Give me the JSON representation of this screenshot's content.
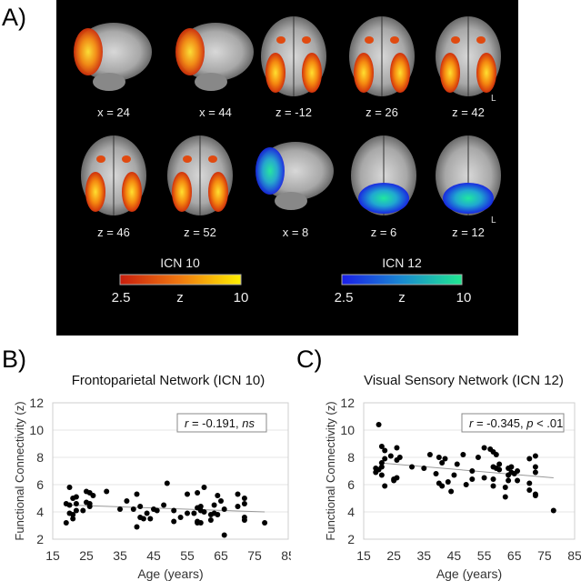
{
  "panel_a": {
    "label": "A)",
    "row1": [
      "x = 24",
      "x = 44",
      "z = -12",
      "z = 26",
      "z = 42"
    ],
    "row2": [
      "z = 46",
      "z = 52",
      "x = 8",
      "z = 6",
      "z = 12"
    ],
    "side_marker": "L",
    "colorbars": [
      {
        "title": "ICN 10",
        "min": "2.5",
        "mid": "z",
        "max": "10",
        "colors": [
          "#c81e0e",
          "#f07a10",
          "#fff000"
        ]
      },
      {
        "title": "ICN 12",
        "min": "2.5",
        "mid": "z",
        "max": "10",
        "colors": [
          "#1a1ee8",
          "#1a8ad0",
          "#20e890"
        ]
      }
    ]
  },
  "chart_data": [
    {
      "panel_label": "B)",
      "type": "scatter",
      "title": "Frontoparietal Network (ICN 10)",
      "xlabel": "Age (years)",
      "ylabel": "Functional Connectivity (z)",
      "xlim": [
        15,
        85
      ],
      "ylim": [
        2,
        12
      ],
      "xticks": [
        "15",
        "25",
        "35",
        "45",
        "55",
        "65",
        "75",
        "85"
      ],
      "yticks": [
        "2",
        "4",
        "6",
        "8",
        "10",
        "12"
      ],
      "grid": true,
      "annotation": {
        "stat": "r",
        "value": " = -0.191, ",
        "sig": "ns"
      },
      "trendline": [
        [
          20,
          4.5
        ],
        [
          78,
          4.0
        ]
      ],
      "points": [
        [
          19,
          4.6
        ],
        [
          19,
          3.2
        ],
        [
          20,
          5.8
        ],
        [
          20,
          4.5
        ],
        [
          20,
          3.9
        ],
        [
          21,
          3.8
        ],
        [
          21,
          3.5
        ],
        [
          21,
          5.0
        ],
        [
          22,
          5.1
        ],
        [
          22,
          4.6
        ],
        [
          22,
          4.1
        ],
        [
          24,
          4.1
        ],
        [
          25,
          5.5
        ],
        [
          25,
          4.7
        ],
        [
          26,
          5.4
        ],
        [
          26,
          4.6
        ],
        [
          26,
          4.4
        ],
        [
          27,
          5.2
        ],
        [
          31,
          5.5
        ],
        [
          35,
          4.2
        ],
        [
          37,
          4.8
        ],
        [
          39,
          4.2
        ],
        [
          40,
          5.3
        ],
        [
          40,
          2.9
        ],
        [
          41,
          4.4
        ],
        [
          41,
          3.6
        ],
        [
          42,
          3.5
        ],
        [
          43,
          3.9
        ],
        [
          44,
          3.5
        ],
        [
          45,
          4.2
        ],
        [
          46,
          4.1
        ],
        [
          48,
          4.5
        ],
        [
          49,
          6.1
        ],
        [
          51,
          4.1
        ],
        [
          51,
          3.3
        ],
        [
          53,
          3.6
        ],
        [
          55,
          5.3
        ],
        [
          55,
          3.9
        ],
        [
          57,
          3.9
        ],
        [
          58,
          5.4
        ],
        [
          58,
          4.3
        ],
        [
          58,
          3.3
        ],
        [
          58,
          3.2
        ],
        [
          59,
          4.4
        ],
        [
          59,
          4.1
        ],
        [
          59,
          3.2
        ],
        [
          60,
          5.8
        ],
        [
          60,
          4.0
        ],
        [
          62,
          3.8
        ],
        [
          62,
          3.4
        ],
        [
          63,
          4.5
        ],
        [
          63,
          3.9
        ],
        [
          64,
          5.2
        ],
        [
          64,
          3.8
        ],
        [
          65,
          4.8
        ],
        [
          66,
          4.2
        ],
        [
          66,
          2.3
        ],
        [
          70,
          5.3
        ],
        [
          70,
          4.4
        ],
        [
          72,
          5.0
        ],
        [
          72,
          4.6
        ],
        [
          72,
          3.6
        ],
        [
          72,
          3.4
        ],
        [
          78,
          3.2
        ]
      ]
    },
    {
      "panel_label": "C)",
      "type": "scatter",
      "title": "Visual Sensory Network (ICN 12)",
      "xlabel": "Age (years)",
      "ylabel": "Functional Connectivity (z)",
      "xlim": [
        15,
        85
      ],
      "ylim": [
        2,
        12
      ],
      "xticks": [
        "15",
        "25",
        "35",
        "45",
        "55",
        "65",
        "75",
        "85"
      ],
      "yticks": [
        "2",
        "4",
        "6",
        "8",
        "10",
        "12"
      ],
      "grid": true,
      "annotation": {
        "stat": "r",
        "value": " = -0.345, ",
        "sig": "p",
        "tail": " < .01"
      },
      "trendline": [
        [
          20,
          7.6
        ],
        [
          78,
          6.5
        ]
      ],
      "points": [
        [
          19,
          7.2
        ],
        [
          19,
          6.9
        ],
        [
          20,
          10.4
        ],
        [
          20,
          7.1
        ],
        [
          21,
          7.3
        ],
        [
          21,
          6.7
        ],
        [
          21,
          8.8
        ],
        [
          21,
          7.6
        ],
        [
          22,
          8.5
        ],
        [
          22,
          7.9
        ],
        [
          22,
          5.9
        ],
        [
          24,
          8.1
        ],
        [
          25,
          6.4
        ],
        [
          25,
          6.3
        ],
        [
          26,
          8.7
        ],
        [
          26,
          7.8
        ],
        [
          26,
          6.5
        ],
        [
          27,
          8.0
        ],
        [
          31,
          7.3
        ],
        [
          35,
          7.2
        ],
        [
          37,
          8.2
        ],
        [
          39,
          6.8
        ],
        [
          40,
          8.0
        ],
        [
          40,
          6.1
        ],
        [
          41,
          7.6
        ],
        [
          41,
          5.9
        ],
        [
          42,
          7.9
        ],
        [
          43,
          6.2
        ],
        [
          44,
          5.5
        ],
        [
          45,
          6.7
        ],
        [
          46,
          7.5
        ],
        [
          48,
          8.2
        ],
        [
          49,
          6.0
        ],
        [
          51,
          7.0
        ],
        [
          51,
          6.4
        ],
        [
          53,
          8.0
        ],
        [
          55,
          8.7
        ],
        [
          55,
          6.5
        ],
        [
          57,
          8.6
        ],
        [
          58,
          8.4
        ],
        [
          58,
          7.3
        ],
        [
          58,
          6.4
        ],
        [
          58,
          5.9
        ],
        [
          59,
          8.2
        ],
        [
          59,
          7.2
        ],
        [
          60,
          7.5
        ],
        [
          60,
          7.1
        ],
        [
          62,
          5.8
        ],
        [
          62,
          5.1
        ],
        [
          63,
          7.2
        ],
        [
          63,
          6.7
        ],
        [
          63,
          6.3
        ],
        [
          64,
          7.3
        ],
        [
          64,
          6.9
        ],
        [
          65,
          6.8
        ],
        [
          66,
          7.0
        ],
        [
          66,
          6.3
        ],
        [
          70,
          7.9
        ],
        [
          70,
          6.1
        ],
        [
          70,
          5.6
        ],
        [
          72,
          8.1
        ],
        [
          72,
          7.3
        ],
        [
          72,
          6.9
        ],
        [
          72,
          5.3
        ],
        [
          72,
          5.2
        ],
        [
          78,
          4.1
        ]
      ]
    }
  ]
}
